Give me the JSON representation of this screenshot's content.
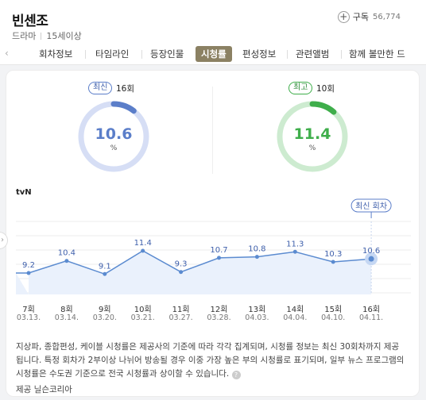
{
  "header": {
    "title": "빈센조",
    "genre": "드라마",
    "rating": "15세이상",
    "subscribe_label": "구독",
    "subscribe_count": "56,774"
  },
  "tabs": [
    {
      "label": "회차정보"
    },
    {
      "label": "타임라인"
    },
    {
      "label": "등장인물"
    },
    {
      "label": "시청률"
    },
    {
      "label": "편성정보"
    },
    {
      "label": "관련앨범"
    },
    {
      "label": "함께 볼만한 드"
    }
  ],
  "active_tab": "시청률",
  "stats": {
    "latest": {
      "badge": "최신",
      "episode": "16회",
      "value": "10.6",
      "unit": "%",
      "color": "#5b7ec9",
      "track": "#d6def5",
      "fraction": 0.106
    },
    "highest": {
      "badge": "최고",
      "episode": "10회",
      "value": "11.4",
      "unit": "%",
      "color": "#3fae4b",
      "track": "#cdebd0",
      "fraction": 0.114
    }
  },
  "network": "tvN",
  "chart_data": {
    "type": "area",
    "x": [
      "7회",
      "8회",
      "9회",
      "10회",
      "11회",
      "12회",
      "13회",
      "14회",
      "15회",
      "16회"
    ],
    "dates": [
      "03.13.",
      "03.14.",
      "03.20.",
      "03.21.",
      "03.27.",
      "03.28.",
      "04.03.",
      "04.04.",
      "04.10.",
      "04.11."
    ],
    "values": [
      9.2,
      10.4,
      9.1,
      11.4,
      9.3,
      10.7,
      10.8,
      11.3,
      10.3,
      10.6
    ],
    "highlight_label": "최신 회차",
    "line_color": "#5b8bd0",
    "fill_color": "#eaf1fc",
    "grid": true
  },
  "footnote": "지상파, 종합편성, 케이블 시청률은 제공사의 기준에 따라 각각 집계되며, 시청률 정보는 최신 30회차까지 제공됩니다. 특정 회차가 2부이상 나뉘어 방송될 경우 이중 가장 높은 부의 시청률로 표기되며, 일부 뉴스 프로그램의 시청률은 수도권 기준으로 전국 시청률과 상이할 수 있습니다.",
  "source": "제공 닐슨코리아"
}
